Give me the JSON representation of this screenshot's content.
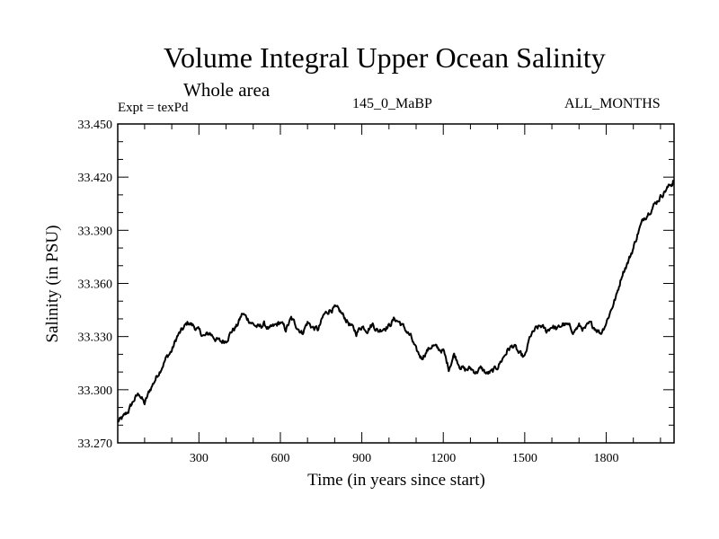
{
  "header": {
    "title": "Volume Integral Upper Ocean Salinity",
    "subtitle": "Whole area",
    "experiment": "Expt = texPd",
    "run": "145_0_MaBP",
    "months": "ALL_MONTHS"
  },
  "chart_data": {
    "type": "line",
    "title": "Volume Integral Upper Ocean Salinity",
    "xlabel": "Time (in years since start)",
    "ylabel": "Salinity (in PSU)",
    "xlim": [
      1,
      2050
    ],
    "ylim": [
      33.27,
      33.45
    ],
    "xticks": [
      300,
      600,
      900,
      1200,
      1500,
      1800
    ],
    "xtick_labels": [
      "300",
      "600",
      "900",
      "1200",
      "1500",
      "1800"
    ],
    "yticks": [
      33.27,
      33.3,
      33.33,
      33.36,
      33.39,
      33.42,
      33.45
    ],
    "ytick_labels": [
      "33.270",
      "33.300",
      "33.330",
      "33.360",
      "33.390",
      "33.420",
      "33.450"
    ],
    "grid": false,
    "legend": "none",
    "series": [
      {
        "name": "salinity",
        "x": [
          1,
          20,
          40,
          60,
          80,
          100,
          120,
          140,
          160,
          180,
          200,
          220,
          240,
          260,
          280,
          300,
          320,
          340,
          360,
          380,
          400,
          420,
          440,
          460,
          480,
          500,
          520,
          540,
          560,
          580,
          600,
          620,
          640,
          660,
          680,
          700,
          720,
          740,
          760,
          780,
          800,
          820,
          840,
          860,
          880,
          900,
          920,
          940,
          960,
          980,
          1000,
          1020,
          1040,
          1060,
          1080,
          1100,
          1120,
          1140,
          1160,
          1180,
          1200,
          1220,
          1240,
          1260,
          1280,
          1300,
          1320,
          1340,
          1360,
          1380,
          1400,
          1420,
          1440,
          1460,
          1480,
          1500,
          1520,
          1540,
          1560,
          1580,
          1600,
          1620,
          1640,
          1660,
          1680,
          1700,
          1720,
          1740,
          1760,
          1780,
          1800,
          1820,
          1840,
          1860,
          1880,
          1900,
          1920,
          1940,
          1960,
          1980,
          2000,
          2020,
          2040,
          2050
        ],
        "values": [
          33.282,
          33.284,
          33.288,
          33.294,
          33.298,
          33.292,
          33.3,
          33.306,
          33.312,
          33.318,
          33.322,
          33.33,
          33.334,
          33.338,
          33.336,
          33.333,
          33.33,
          33.332,
          33.329,
          33.327,
          33.328,
          33.333,
          33.336,
          33.343,
          33.34,
          33.337,
          33.335,
          33.337,
          33.334,
          33.336,
          33.338,
          33.334,
          33.34,
          33.336,
          33.332,
          33.338,
          33.335,
          33.334,
          33.342,
          33.345,
          33.346,
          33.344,
          33.34,
          33.336,
          33.332,
          33.336,
          33.334,
          33.337,
          33.333,
          33.335,
          33.336,
          33.34,
          33.338,
          33.334,
          33.33,
          33.322,
          33.318,
          33.322,
          33.325,
          33.323,
          33.322,
          33.312,
          33.32,
          33.314,
          33.311,
          33.312,
          33.31,
          33.312,
          33.309,
          33.31,
          33.313,
          33.318,
          33.323,
          33.325,
          33.32,
          33.318,
          33.33,
          33.334,
          33.336,
          33.333,
          33.336,
          33.334,
          33.337,
          33.336,
          33.333,
          33.336,
          33.334,
          33.337,
          33.335,
          33.332,
          33.338,
          33.346,
          33.354,
          33.366,
          33.372,
          33.38,
          33.39,
          33.397,
          33.401,
          33.405,
          33.409,
          33.413,
          33.416,
          33.418
        ]
      }
    ]
  }
}
